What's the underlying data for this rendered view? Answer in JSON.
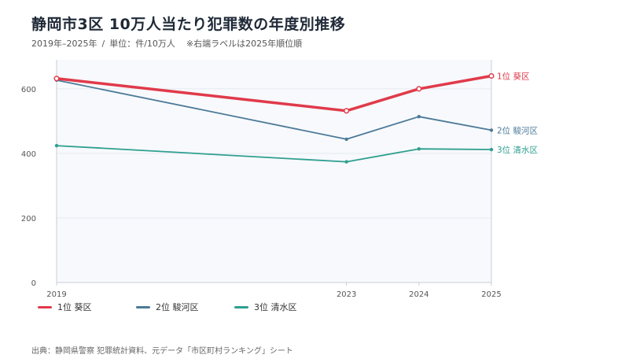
{
  "header": {
    "title": "静岡市3区  10万人当たり犯罪数の年度別推移",
    "subtitle_period": "2019年–2025年",
    "subtitle_unit": "単位：件/10万人",
    "subtitle_note": "※右端ラベルは2025年順位順"
  },
  "footer": {
    "source": "出典：静岡県警察 犯罪統計資料、元データ「市区町村ランキング」シート"
  },
  "colors": {
    "background": "#ffffff",
    "plot_background": "#f7f9fc",
    "grid": "#e6eaf0",
    "axis": "#c8cdd4"
  },
  "chart_data": {
    "type": "line",
    "x": [
      2019,
      2023,
      2024,
      2025
    ],
    "x_tick_labels": [
      "2019",
      "2023",
      "2024",
      "2025"
    ],
    "y_ticks": [
      0,
      200,
      400,
      600
    ],
    "ylim": [
      0,
      690
    ],
    "xlim": [
      2019,
      2025
    ],
    "grid": true,
    "legend_position": "bottom-left",
    "series": [
      {
        "name": "1位 葵区",
        "end_label": "1位 葵区",
        "color": "#e03a4a",
        "emphasis": true,
        "values": [
          632,
          532,
          600,
          640
        ]
      },
      {
        "name": "2位 駿河区",
        "end_label": "2位 駿河区",
        "color": "#4c7a98",
        "emphasis": false,
        "values": [
          627,
          444,
          514,
          472
        ]
      },
      {
        "name": "3位 清水区",
        "end_label": "3位 清水区",
        "color": "#2f9f8f",
        "emphasis": false,
        "values": [
          424,
          374,
          414,
          412
        ]
      }
    ]
  }
}
